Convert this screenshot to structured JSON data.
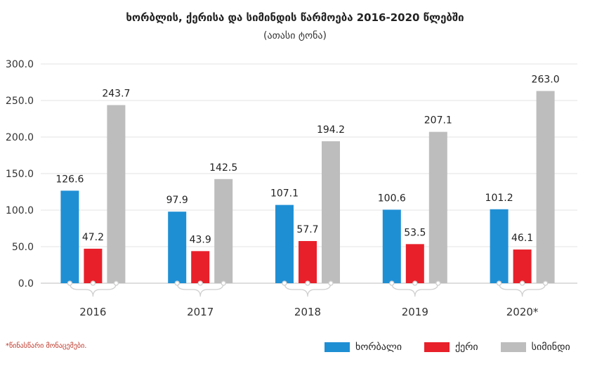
{
  "chart_data": {
    "type": "bar",
    "title": "ხორბლის, ქერისა და სიმინდის წარმოება 2016-2020 წლებში",
    "subtitle": "(ათასი ტონა)",
    "categories": [
      "2016",
      "2017",
      "2018",
      "2019",
      "2020*"
    ],
    "series": [
      {
        "name": "ხორბალი",
        "color": "#1f8fd4",
        "values": [
          126.6,
          97.9,
          107.1,
          100.6,
          101.2
        ]
      },
      {
        "name": "ქერი",
        "color": "#e8202a",
        "values": [
          47.2,
          43.9,
          57.7,
          53.5,
          46.1
        ]
      },
      {
        "name": "სიმინდი",
        "color": "#bdbdbd",
        "values": [
          243.7,
          142.5,
          194.2,
          207.1,
          263.0
        ]
      }
    ],
    "ylim": [
      0,
      300
    ],
    "yticks": [
      "0.0",
      "50.0",
      "100.0",
      "150.0",
      "200.0",
      "250.0",
      "300.0"
    ],
    "grid": true,
    "legend_position": "bottom-right",
    "footnote": "*წინასწარი მონაცემები."
  }
}
